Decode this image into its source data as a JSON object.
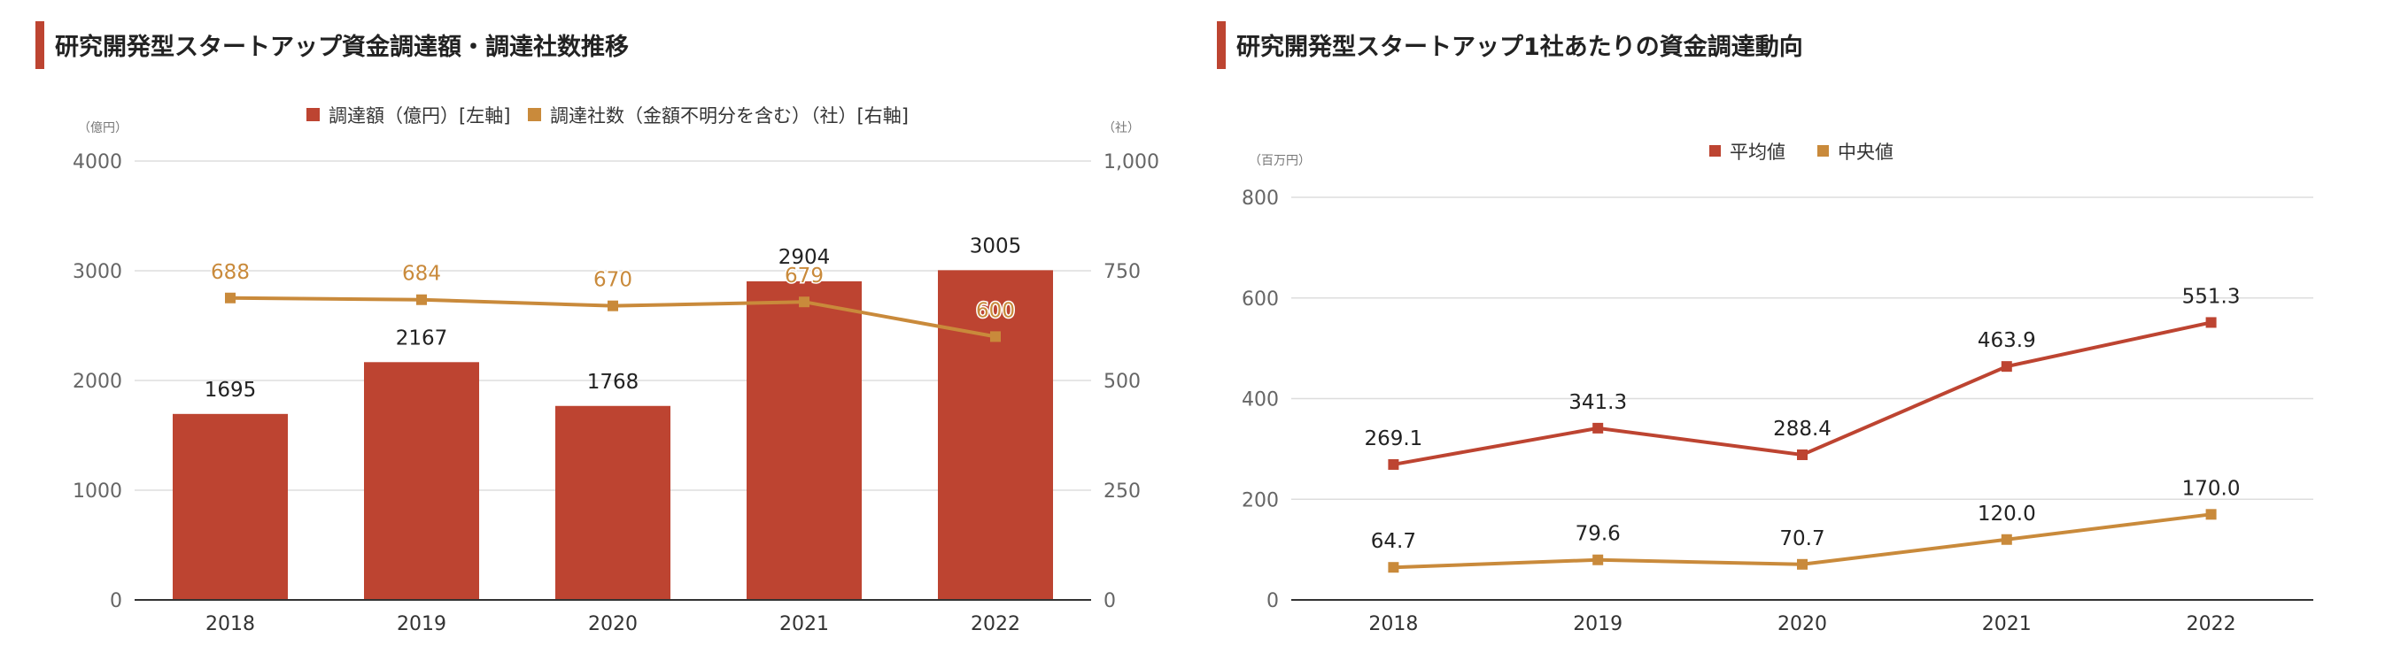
{
  "chart_data": [
    {
      "type": "bar",
      "title": "研究開発型スタートアップ資金調達額・調達社数推移",
      "categories": [
        "2018",
        "2019",
        "2020",
        "2021",
        "2022"
      ],
      "y_unit_left": "（億円）",
      "y_unit_right": "（社）",
      "ylim_left": [
        0,
        4000
      ],
      "ylim_right": [
        0,
        1000
      ],
      "yticks_left": [
        "0",
        "1000",
        "2000",
        "3000",
        "4000"
      ],
      "yticks_right": [
        "0",
        "250",
        "500",
        "750",
        "1,000"
      ],
      "legend_position": "top",
      "grid": true,
      "series": [
        {
          "name": "調達額（億円）[左軸]",
          "type": "bar",
          "axis": "left",
          "color": "#bd4431",
          "values": [
            1695,
            2167,
            1768,
            2904,
            3005
          ],
          "labels": [
            "1695",
            "2167",
            "1768",
            "2904",
            "3005"
          ]
        },
        {
          "name": "調達社数（金額不明分を含む）（社）[右軸]",
          "type": "line",
          "axis": "right",
          "color": "#c98a3b",
          "values": [
            688,
            684,
            670,
            679,
            600
          ],
          "labels": [
            "688",
            "684",
            "670",
            "679",
            "600"
          ]
        }
      ]
    },
    {
      "type": "line",
      "title": "研究開発型スタートアップ1社あたりの資金調達動向",
      "categories": [
        "2018",
        "2019",
        "2020",
        "2021",
        "2022"
      ],
      "y_unit": "（百万円）",
      "ylim": [
        0,
        800
      ],
      "yticks": [
        "0",
        "200",
        "400",
        "600",
        "800"
      ],
      "legend_position": "top",
      "grid": true,
      "series": [
        {
          "name": "平均値",
          "color": "#bd4431",
          "values": [
            269.1,
            341.3,
            288.4,
            463.9,
            551.3
          ],
          "labels": [
            "269.1",
            "341.3",
            "288.4",
            "463.9",
            "551.3"
          ]
        },
        {
          "name": "中央値",
          "color": "#c98a3b",
          "values": [
            64.7,
            79.6,
            70.7,
            120.0,
            170.0
          ],
          "labels": [
            "64.7",
            "79.6",
            "70.7",
            "120.0",
            "170.0"
          ]
        }
      ]
    }
  ]
}
